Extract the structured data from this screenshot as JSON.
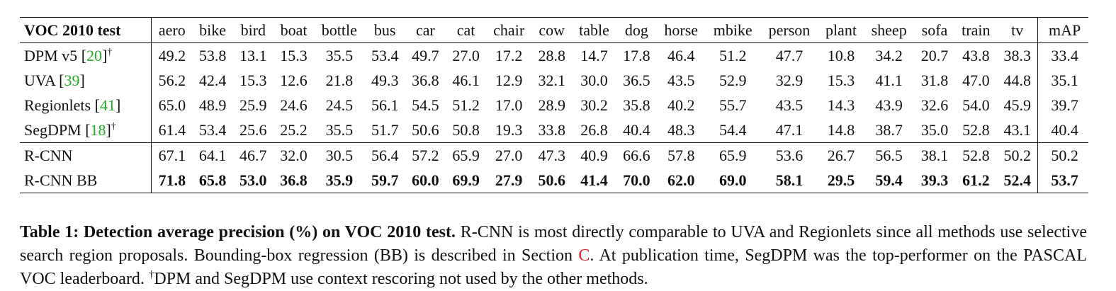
{
  "table": {
    "corner": "VOC 2010 test",
    "classes": [
      "aero",
      "bike",
      "bird",
      "boat",
      "bottle",
      "bus",
      "car",
      "cat",
      "chair",
      "cow",
      "table",
      "dog",
      "horse",
      "mbike",
      "person",
      "plant",
      "sheep",
      "sofa",
      "train",
      "tv"
    ],
    "map_header": "mAP",
    "rows": [
      {
        "name": "DPM v5",
        "cite": "20",
        "dagger": "†",
        "values": [
          "49.2",
          "53.8",
          "13.1",
          "15.3",
          "35.5",
          "53.4",
          "49.7",
          "27.0",
          "17.2",
          "28.8",
          "14.7",
          "17.8",
          "46.4",
          "51.2",
          "47.7",
          "10.8",
          "34.2",
          "20.7",
          "43.8",
          "38.3"
        ],
        "map": "33.4"
      },
      {
        "name": "UVA",
        "cite": "39",
        "dagger": "",
        "values": [
          "56.2",
          "42.4",
          "15.3",
          "12.6",
          "21.8",
          "49.3",
          "36.8",
          "46.1",
          "12.9",
          "32.1",
          "30.0",
          "36.5",
          "43.5",
          "52.9",
          "32.9",
          "15.3",
          "41.1",
          "31.8",
          "47.0",
          "44.8"
        ],
        "map": "35.1"
      },
      {
        "name": "Regionlets",
        "cite": "41",
        "dagger": "",
        "values": [
          "65.0",
          "48.9",
          "25.9",
          "24.6",
          "24.5",
          "56.1",
          "54.5",
          "51.2",
          "17.0",
          "28.9",
          "30.2",
          "35.8",
          "40.2",
          "55.7",
          "43.5",
          "14.3",
          "43.9",
          "32.6",
          "54.0",
          "45.9"
        ],
        "map": "39.7"
      },
      {
        "name": "SegDPM",
        "cite": "18",
        "dagger": "†",
        "values": [
          "61.4",
          "53.4",
          "25.6",
          "25.2",
          "35.5",
          "51.7",
          "50.6",
          "50.8",
          "19.3",
          "33.8",
          "26.8",
          "40.4",
          "48.3",
          "54.4",
          "47.1",
          "14.8",
          "38.7",
          "35.0",
          "52.8",
          "43.1"
        ],
        "map": "40.4"
      },
      {
        "name": "R-CNN",
        "cite": "",
        "dagger": "",
        "values": [
          "67.1",
          "64.1",
          "46.7",
          "32.0",
          "30.5",
          "56.4",
          "57.2",
          "65.9",
          "27.0",
          "47.3",
          "40.9",
          "66.6",
          "57.8",
          "65.9",
          "53.6",
          "26.7",
          "56.5",
          "38.1",
          "52.8",
          "50.2"
        ],
        "map": "50.2"
      },
      {
        "name": "R-CNN BB",
        "cite": "",
        "dagger": "",
        "values": [
          "71.8",
          "65.8",
          "53.0",
          "36.8",
          "35.9",
          "59.7",
          "60.0",
          "69.9",
          "27.9",
          "50.6",
          "41.4",
          "70.0",
          "62.0",
          "69.0",
          "58.1",
          "29.5",
          "59.4",
          "39.3",
          "61.2",
          "52.4"
        ],
        "map": "53.7"
      }
    ]
  },
  "caption": {
    "title": "Table 1: Detection average precision (%) on VOC 2010 test.",
    "text1": "R-CNN is most directly comparable to UVA and Regionlets since all methods use selective search region proposals. Bounding-box regression (BB) is described in Section",
    "section_ref": "C",
    "text2": ". At publication time, SegDPM was the top-performer on the PASCAL VOC leaderboard.",
    "dagger": "†",
    "text3": "DPM and SegDPM use context rescoring not used by the other methods."
  }
}
